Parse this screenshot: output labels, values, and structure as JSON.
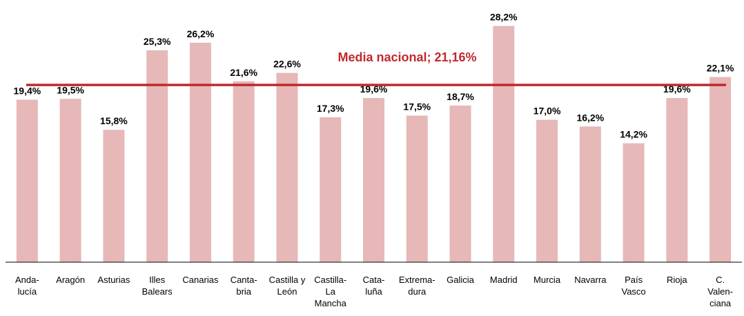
{
  "chart_data": {
    "type": "bar",
    "categories": [
      "Anda-\nlucía",
      "Aragón",
      "Asturias",
      "Illes\nBalears",
      "Canarias",
      "Canta-\nbria",
      "Castilla y\nLeón",
      "Castilla-\nLa\nMancha",
      "Cata-\nluña",
      "Extrema-\ndura",
      "Galicia",
      "Madrid",
      "Murcia",
      "Navarra",
      "País\nVasco",
      "Rioja",
      "C.\nValen-\nciana"
    ],
    "values": [
      19.4,
      19.5,
      15.8,
      25.3,
      26.2,
      21.6,
      22.6,
      17.3,
      19.6,
      17.5,
      18.7,
      28.2,
      17.0,
      16.2,
      14.2,
      19.6,
      22.1
    ],
    "value_labels": [
      "19,4%",
      "19,5%",
      "15,8%",
      "25,3%",
      "26,2%",
      "21,6%",
      "22,6%",
      "17,3%",
      "19,6%",
      "17,5%",
      "18,7%",
      "28,2%",
      "17,0%",
      "16,2%",
      "14,2%",
      "19,6%",
      "22,1%"
    ],
    "color": "#e6b8b7",
    "ylim": [
      0,
      31.3
    ],
    "reference_line": {
      "value": 21.16,
      "label": "Media nacional; 21,16%",
      "color": "#c0282d"
    }
  }
}
